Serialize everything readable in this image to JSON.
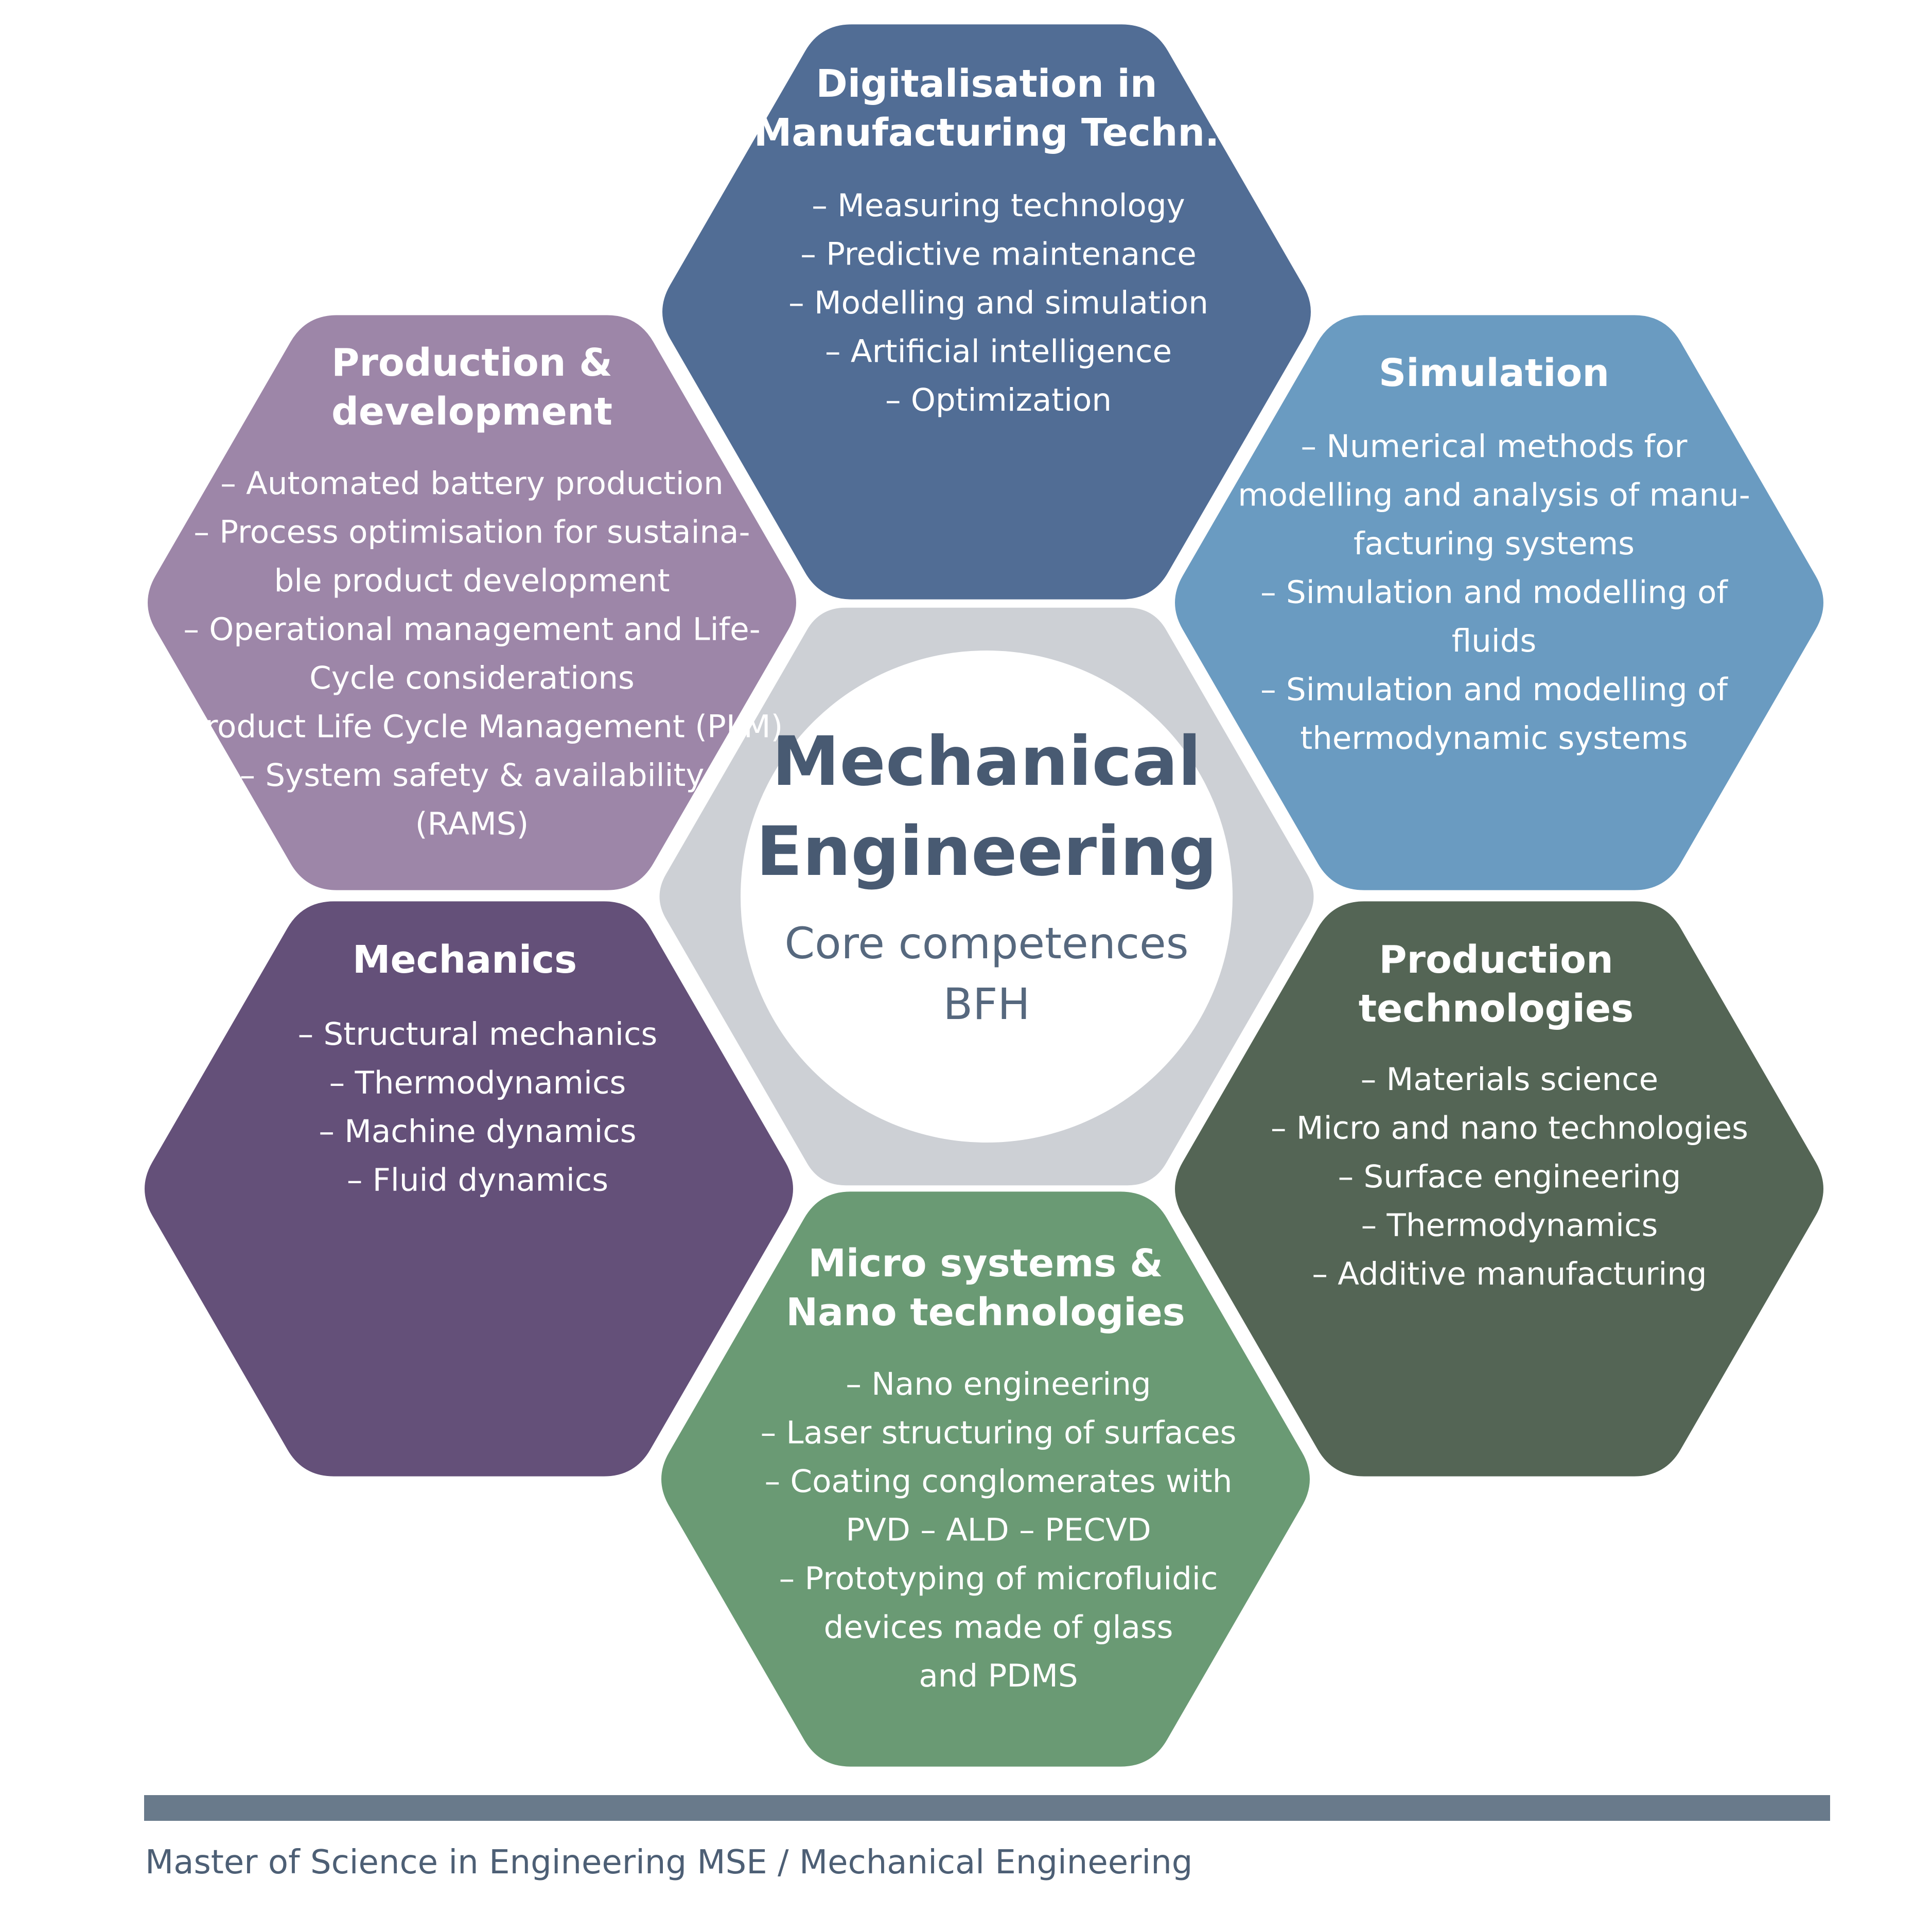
{
  "center": {
    "title_lines": [
      "Mechanical",
      "Engineering"
    ],
    "subtitle_lines": [
      "Core competences",
      "BFH"
    ],
    "ring_color": "#cdd0d5"
  },
  "hexagons": [
    {
      "id": "digitalisation",
      "color": "#516d95",
      "title": [
        "Digitalisation in",
        "Manufacturing Techn."
      ],
      "items": [
        "– Measuring technology",
        "– Predictive maintenance",
        "– Modelling and simulation",
        "– Artificial intelligence",
        "– Optimization"
      ]
    },
    {
      "id": "simulation",
      "color": "#6a9bc1",
      "title": [
        "Simulation"
      ],
      "items": [
        "– Numerical methods for",
        "modelling and analysis of manu-",
        "facturing systems",
        "– Simulation and modelling of",
        "fluids",
        "– Simulation and modelling of",
        "thermodynamic systems"
      ]
    },
    {
      "id": "production-technologies",
      "color": "#546555",
      "title": [
        "Production",
        "technologies"
      ],
      "items": [
        "– Materials science",
        "– Micro and nano technologies",
        "– Surface engineering",
        "– Thermodynamics",
        "– Additive manufacturing"
      ]
    },
    {
      "id": "micro-systems",
      "color": "#6a9a74",
      "title": [
        "Micro systems &",
        "Nano technologies"
      ],
      "items": [
        "– Nano engineering",
        "– Laser structuring of surfaces",
        "– Coating conglomerates with",
        "PVD – ALD – PECVD",
        "– Prototyping of microfluidic",
        "devices made of glass",
        "and PDMS"
      ]
    },
    {
      "id": "mechanics",
      "color": "#645079",
      "title": [
        "Mechanics"
      ],
      "items": [
        "– Structural mechanics",
        "– Thermodynamics",
        "– Machine dynamics",
        "– Fluid dynamics"
      ]
    },
    {
      "id": "production-development",
      "color": "#9d86a8",
      "title": [
        "Production &",
        "development"
      ],
      "items": [
        "– Automated battery production",
        "– Process optimisation  for sustaina-",
        "ble product development",
        "– Operational management and Life-",
        "Cycle considerations",
        "– Product Life Cycle Management (PLM)",
        "– System safety & availability",
        "(RAMS)"
      ]
    }
  ],
  "footer": {
    "text": "Master of Science in Engineering MSE / Mechanical Engineering",
    "bar_color": "#697a8b"
  }
}
